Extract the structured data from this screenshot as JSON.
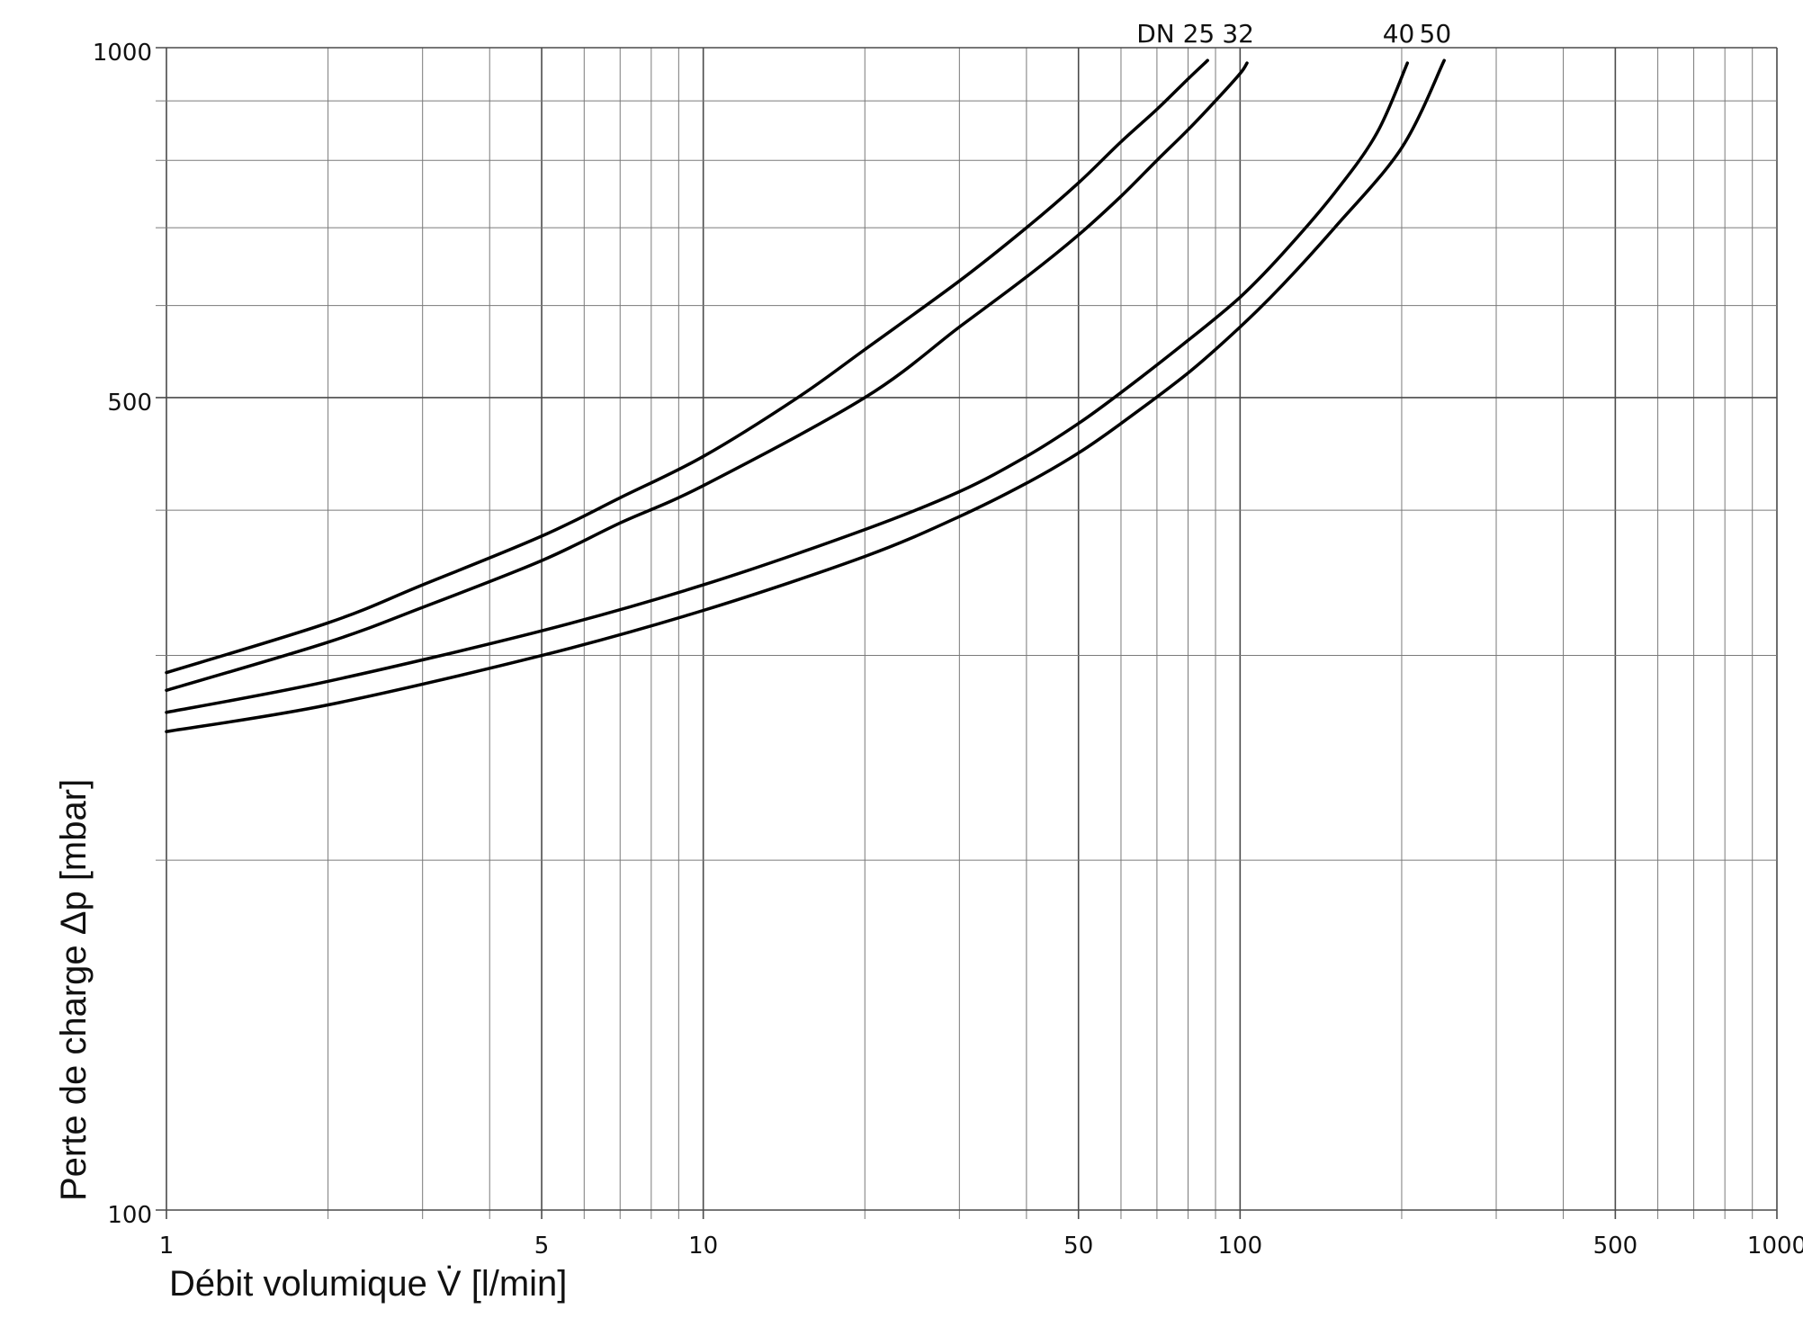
{
  "colors": {
    "background": "#ffffff",
    "grid": "#7a7a7a",
    "grid_major": "#4a4a4a",
    "curve": "#000000",
    "text": "#111111"
  },
  "chart_data": {
    "type": "line",
    "title": "",
    "xlabel": "Débit volumique V̇ [l/min]",
    "ylabel": "Perte de charge Δp [mbar]",
    "x_scale": "log",
    "y_scale": "log",
    "xlim": [
      1,
      1000
    ],
    "ylim": [
      100,
      1000
    ],
    "grid": true,
    "x_tick_labels": [
      {
        "value": 1,
        "label": "1"
      },
      {
        "value": 5,
        "label": "5"
      },
      {
        "value": 10,
        "label": "10"
      },
      {
        "value": 50,
        "label": "50"
      },
      {
        "value": 100,
        "label": "100"
      },
      {
        "value": 500,
        "label": "500"
      },
      {
        "value": 1000,
        "label": "1000"
      }
    ],
    "y_tick_labels": [
      {
        "value": 100,
        "label": "100"
      },
      {
        "value": 500,
        "label": "500"
      },
      {
        "value": 1000,
        "label": "1000"
      }
    ],
    "curve_labels": [
      "DN 25",
      "32",
      "40",
      "50"
    ],
    "series": [
      {
        "x": [
          1,
          2,
          3,
          5,
          7,
          10,
          15,
          20,
          30,
          40,
          50,
          60,
          70,
          80,
          87
        ],
        "y": [
          290,
          320,
          345,
          380,
          410,
          445,
          500,
          550,
          630,
          700,
          765,
          830,
          885,
          940,
          975
        ]
      },
      {
        "x": [
          1,
          2,
          3,
          5,
          7,
          10,
          20,
          30,
          40,
          50,
          60,
          70,
          80,
          90,
          100,
          103
        ],
        "y": [
          280,
          308,
          330,
          362,
          390,
          420,
          500,
          575,
          635,
          690,
          745,
          800,
          850,
          900,
          950,
          970
        ]
      },
      {
        "x": [
          1,
          2,
          5,
          10,
          20,
          30,
          40,
          50,
          60,
          80,
          100,
          120,
          150,
          180,
          205
        ],
        "y": [
          268,
          285,
          315,
          345,
          385,
          415,
          445,
          475,
          505,
          560,
          610,
          665,
          750,
          845,
          970
        ]
      },
      {
        "x": [
          1,
          2,
          5,
          10,
          20,
          30,
          40,
          50,
          60,
          80,
          100,
          120,
          150,
          200,
          240
        ],
        "y": [
          258,
          272,
          300,
          328,
          365,
          395,
          422,
          448,
          475,
          525,
          575,
          625,
          700,
          820,
          975
        ]
      }
    ]
  }
}
